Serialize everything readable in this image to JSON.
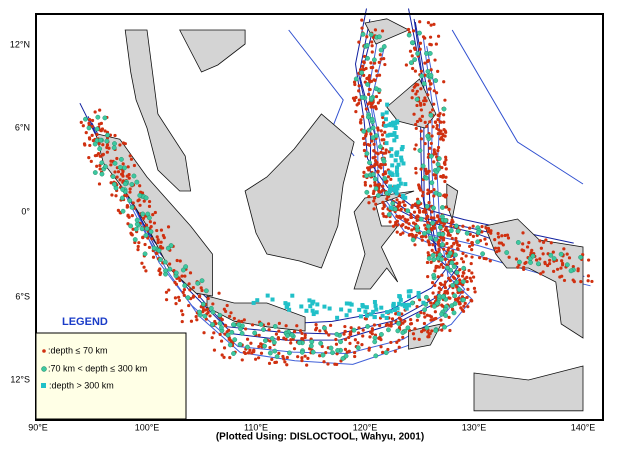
{
  "map": {
    "lat_labels": [
      "12°N",
      "6°N",
      "0°",
      "6°S",
      "12°S"
    ],
    "lon_labels": [
      "90°E",
      "100°E",
      "110°E",
      "120°E",
      "130°E",
      "140°E"
    ],
    "legend": {
      "title": "LEGEND",
      "items": [
        ":depth ≤ 70 km",
        ":70 km < depth ≤ 300 km",
        ":depth > 300 km"
      ]
    },
    "credit": "(Plotted Using: DISLOCTOOL, Wahyu, 2001)"
  }
}
